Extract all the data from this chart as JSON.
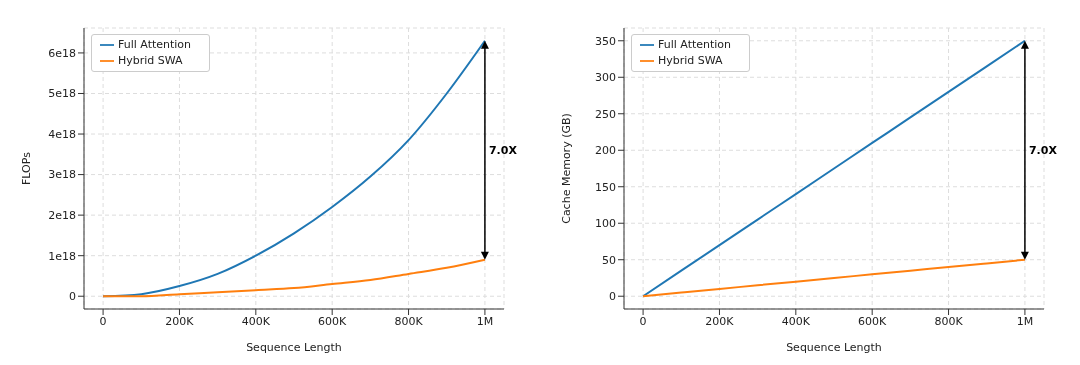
{
  "chart_data": [
    {
      "type": "line",
      "xlabel": "Sequence Length",
      "ylabel": "FLOPs",
      "x": [
        0,
        100000,
        200000,
        300000,
        400000,
        500000,
        600000,
        700000,
        800000,
        900000,
        1000000
      ],
      "series": [
        {
          "name": "Full Attention",
          "color": "#1f77b4",
          "values": [
            0,
            5e+16,
            2.5e+17,
            5.5e+17,
            1e+18,
            1.55e+18,
            2.2e+18,
            2.95e+18,
            3.85e+18,
            5e+18,
            6.3e+18
          ]
        },
        {
          "name": "Hybrid SWA",
          "color": "#ff7f0e",
          "values": [
            0,
            0,
            5e+16,
            1e+17,
            1.5e+17,
            2e+17,
            3e+17,
            4e+17,
            5.5e+17,
            7e+17,
            9e+17
          ]
        }
      ],
      "xlim": [
        -50000,
        1050000
      ],
      "xticks": [
        0,
        {
          "value": 200000,
          "label": "200K"
        },
        {
          "value": 400000,
          "label": "400K"
        },
        {
          "value": 600000,
          "label": "600K"
        },
        {
          "value": 800000,
          "label": "800K"
        },
        {
          "value": 1000000,
          "label": "1M"
        }
      ],
      "ylim": [
        -3.15e+17,
        6.615e+18
      ],
      "yticks": [
        0,
        {
          "value": 1e+18,
          "label": "1e18"
        },
        {
          "value": 2e+18,
          "label": "2e18"
        },
        {
          "value": 3e+18,
          "label": "3e18"
        },
        {
          "value": 4e+18,
          "label": "4e18"
        },
        {
          "value": 5e+18,
          "label": "5e18"
        },
        {
          "value": 6e+18,
          "label": "6e18"
        }
      ],
      "annotations": [
        "7.0X"
      ],
      "grid": true,
      "legend": "top left",
      "line_style": "solid",
      "marker": "none"
    },
    {
      "type": "line",
      "xlabel": "Sequence Length",
      "ylabel": "Cache Memory (GB)",
      "x": [
        0,
        100000,
        200000,
        300000,
        400000,
        500000,
        600000,
        700000,
        800000,
        900000,
        1000000
      ],
      "series": [
        {
          "name": "Full Attention",
          "color": "#1f77b4",
          "values": [
            0,
            35,
            70,
            105,
            140,
            175,
            210,
            245,
            280,
            315,
            350
          ]
        },
        {
          "name": "Hybrid SWA",
          "color": "#ff7f0e",
          "values": [
            0,
            5,
            10,
            15,
            20,
            25,
            30,
            35,
            40,
            45,
            50
          ]
        }
      ],
      "xlim": [
        -50000,
        1050000
      ],
      "xticks": [
        0,
        {
          "value": 200000,
          "label": "200K"
        },
        {
          "value": 400000,
          "label": "400K"
        },
        {
          "value": 600000,
          "label": "600K"
        },
        {
          "value": 800000,
          "label": "800K"
        },
        {
          "value": 1000000,
          "label": "1M"
        }
      ],
      "ylim": [
        -17.5,
        367.5
      ],
      "yticks": [
        0,
        50,
        100,
        150,
        200,
        250,
        300,
        350
      ],
      "annotations": [
        "7.0X"
      ],
      "grid": true,
      "legend": "top left",
      "line_style": "solid",
      "marker": "none"
    }
  ]
}
